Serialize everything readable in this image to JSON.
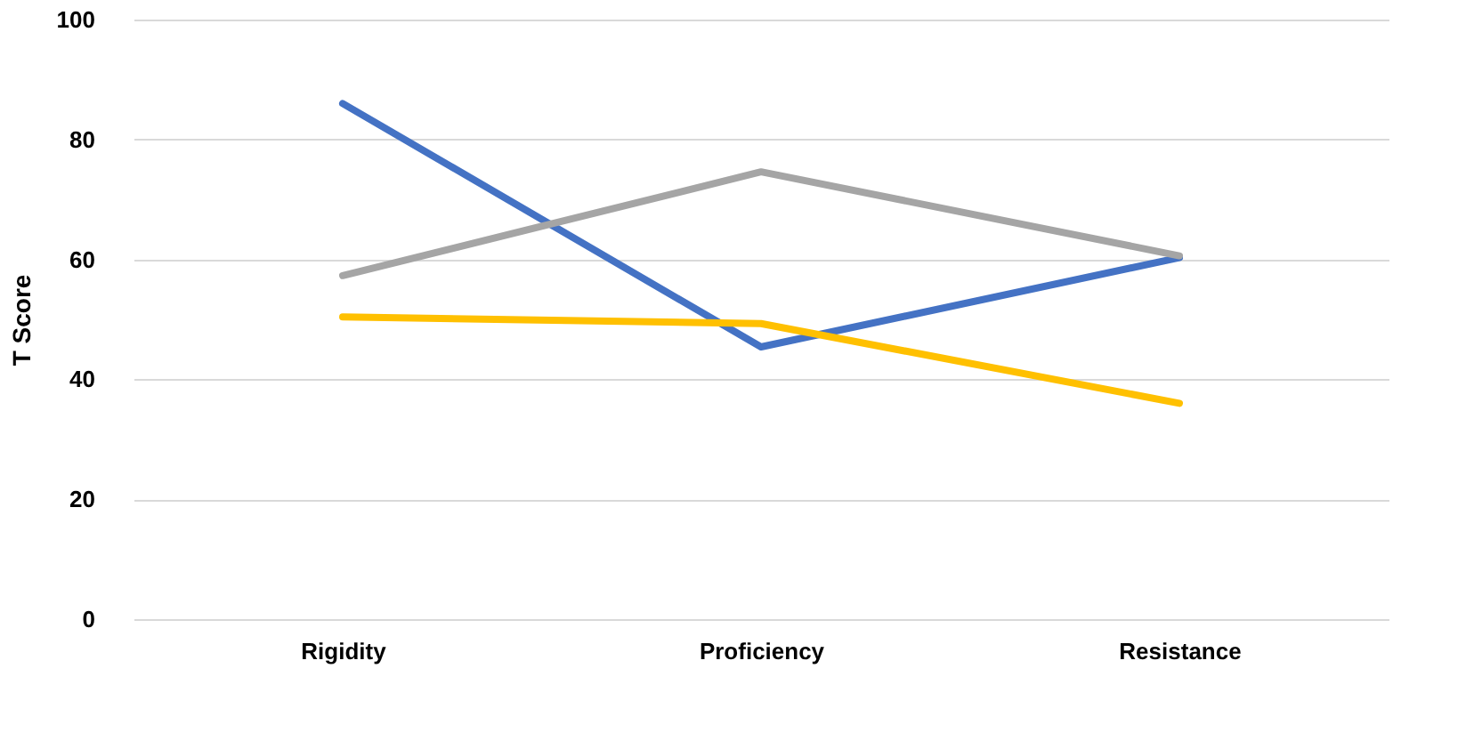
{
  "chart_data": {
    "type": "line",
    "ylabel": "T Score",
    "categories": [
      "Rigidity",
      "Proficiency",
      "Resistance"
    ],
    "series": [
      {
        "color": "#4472c4",
        "values": [
          86,
          45.4,
          60.3
        ]
      },
      {
        "color": "#a5a5a5",
        "values": [
          57.3,
          74.6,
          60.6
        ]
      },
      {
        "color": "#ffc000",
        "values": [
          50.4,
          49.3,
          36
        ]
      }
    ],
    "ylim": [
      0,
      100
    ],
    "yticks": [
      0,
      20,
      40,
      60,
      80,
      100
    ],
    "grid": "y",
    "legend": false,
    "marker": "none",
    "line_style": "solid"
  }
}
